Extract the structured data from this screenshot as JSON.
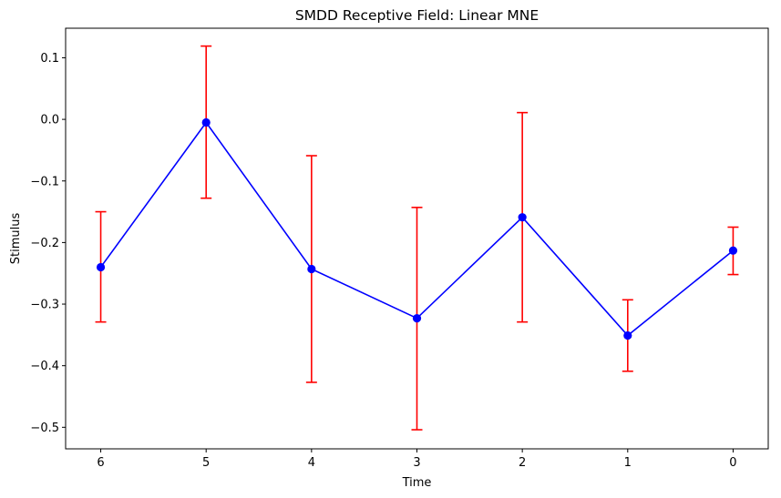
{
  "chart_data": {
    "type": "line",
    "title": "SMDD Receptive Field: Linear MNE",
    "xlabel": "Time",
    "ylabel": "Stimulus",
    "categories": [
      "6",
      "5",
      "4",
      "3",
      "2",
      "1",
      "0"
    ],
    "values": [
      -0.24,
      -0.005,
      -0.243,
      -0.323,
      -0.159,
      -0.351,
      -0.213
    ],
    "error_upper": [
      -0.15,
      0.119,
      -0.059,
      -0.143,
      0.011,
      -0.293,
      -0.175
    ],
    "error_lower": [
      -0.329,
      -0.128,
      -0.427,
      -0.504,
      -0.329,
      -0.409,
      -0.252
    ],
    "ylim": [
      -0.535,
      0.148
    ],
    "yticks": [
      0.1,
      0.0,
      -0.1,
      -0.2,
      -0.3,
      -0.4,
      -0.5
    ],
    "ytick_labels": [
      "0.1",
      "0.0",
      "−0.1",
      "−0.2",
      "−0.3",
      "−0.4",
      "−0.5"
    ],
    "grid": false,
    "colors": {
      "line": "#0000ff",
      "marker": "#0000ff",
      "error": "#ff0000"
    }
  }
}
